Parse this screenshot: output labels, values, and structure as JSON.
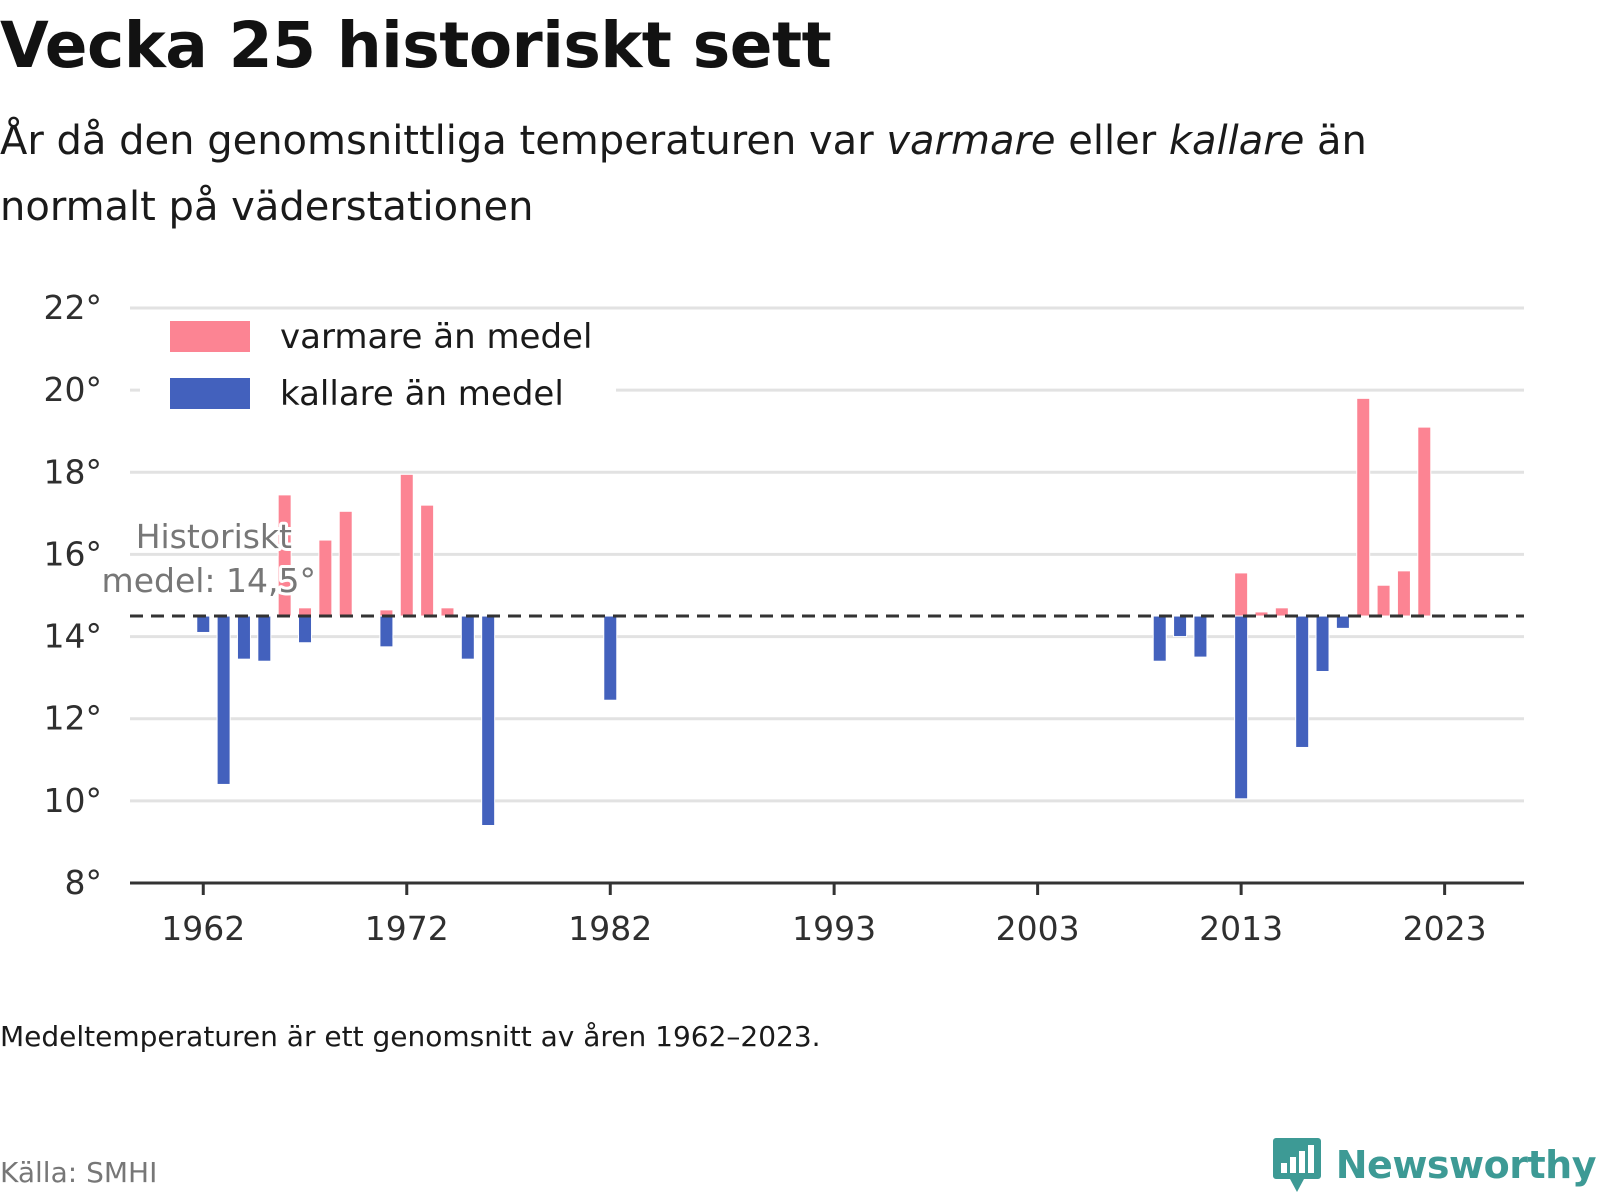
{
  "header": {
    "title": "Vecka 25 historiskt sett",
    "subtitle_part1": "År då den genomsnittliga temperaturen var ",
    "subtitle_em1": "varmare",
    "subtitle_part2": " eller ",
    "subtitle_em2": "kallare",
    "subtitle_part3": " än normalt på väderstationen"
  },
  "footer": {
    "note": "Medeltemperaturen är ett genomsnitt av åren 1962–2023.",
    "source": "Källa: SMHI",
    "brand": "Newsworthy",
    "brand_icon": "newsworthy-logo-icon"
  },
  "chart_data": {
    "type": "bar",
    "baseline": 14.5,
    "baseline_label_line1": "Historiskt",
    "baseline_label_line2": "medel: 14,5°",
    "ylim": [
      8,
      22
    ],
    "yticks": [
      8,
      10,
      12,
      14,
      16,
      18,
      20,
      22
    ],
    "ytick_suffix": "°",
    "xlim": [
      1958.4,
      2026.9
    ],
    "xtick_labels": [
      "1962",
      "1972",
      "1982",
      "1993",
      "2003",
      "2013",
      "2023"
    ],
    "xtick_positions": [
      1962,
      1972,
      1982,
      1993,
      2003,
      2013,
      2023
    ],
    "grid": true,
    "legend_position": "top-left",
    "colors": {
      "warm": "#fc8493",
      "cold": "#4361bd",
      "grid": "#e2e2e2",
      "axis": "#333333",
      "baseline": "#333333",
      "tick_text": "#2f2f2f",
      "annotation": "#777777"
    },
    "legend": [
      {
        "label": "varmare än medel",
        "series": "warm"
      },
      {
        "label": "kallare än medel",
        "series": "cold"
      }
    ],
    "series": [
      {
        "name": "varmare än medel",
        "key": "warm",
        "points": [
          {
            "x": 1966,
            "y": 17.45
          },
          {
            "x": 1967,
            "y": 14.7
          },
          {
            "x": 1968,
            "y": 16.35
          },
          {
            "x": 1969,
            "y": 17.05
          },
          {
            "x": 1971,
            "y": 14.65
          },
          {
            "x": 1972,
            "y": 17.95
          },
          {
            "x": 1973,
            "y": 17.2
          },
          {
            "x": 1974,
            "y": 14.7
          },
          {
            "x": 2013,
            "y": 15.55
          },
          {
            "x": 2014,
            "y": 14.6
          },
          {
            "x": 2015,
            "y": 14.7
          },
          {
            "x": 2019,
            "y": 19.8
          },
          {
            "x": 2020,
            "y": 15.25
          },
          {
            "x": 2021,
            "y": 15.6
          },
          {
            "x": 2022,
            "y": 19.1
          }
        ]
      },
      {
        "name": "kallare än medel",
        "key": "cold",
        "points": [
          {
            "x": 1962,
            "y": 14.1
          },
          {
            "x": 1963,
            "y": 10.4
          },
          {
            "x": 1964,
            "y": 13.45
          },
          {
            "x": 1965,
            "y": 13.4
          },
          {
            "x": 1967,
            "y": 13.85
          },
          {
            "x": 1971,
            "y": 13.75
          },
          {
            "x": 1975,
            "y": 13.45
          },
          {
            "x": 1976,
            "y": 9.4
          },
          {
            "x": 1982,
            "y": 12.45
          },
          {
            "x": 2009,
            "y": 13.4
          },
          {
            "x": 2010,
            "y": 14.0
          },
          {
            "x": 2011,
            "y": 13.5
          },
          {
            "x": 2013,
            "y": 10.05
          },
          {
            "x": 2016,
            "y": 11.3
          },
          {
            "x": 2017,
            "y": 13.15
          },
          {
            "x": 2018,
            "y": 14.2
          }
        ]
      }
    ]
  }
}
